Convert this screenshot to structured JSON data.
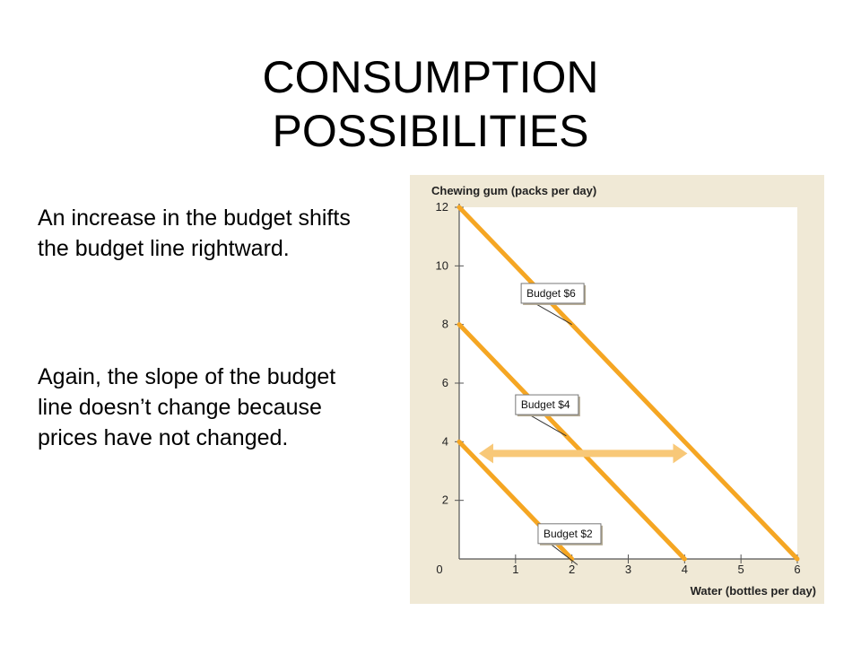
{
  "slide": {
    "title_line1": "CONSUMPTION",
    "title_line2": "POSSIBILITIES",
    "paragraph1": "An increase in the budget shifts the budget line rightward.",
    "paragraph2": "Again, the slope of the budget line doesn’t change because prices have not changed."
  },
  "colors": {
    "budget_line": "#f5a623",
    "shift_arrow": "#f8c878",
    "chart_background": "#f0e9d6",
    "plot_area": "#ffffff",
    "axis": "#555555"
  },
  "chart_data": {
    "type": "line",
    "xlabel": "Water (bottles per day)",
    "ylabel": "Chewing gum (packs per day)",
    "xlim": [
      0,
      6
    ],
    "ylim": [
      0,
      12
    ],
    "x_ticks": [
      "0",
      "1",
      "2",
      "3",
      "4",
      "5",
      "6"
    ],
    "y_ticks": [
      "2",
      "4",
      "6",
      "8",
      "10",
      "12"
    ],
    "grid": false,
    "series": [
      {
        "name": "Budget $2",
        "x": [
          0,
          2
        ],
        "y": [
          4,
          0
        ]
      },
      {
        "name": "Budget $4",
        "x": [
          0,
          4
        ],
        "y": [
          8,
          0
        ]
      },
      {
        "name": "Budget $6",
        "x": [
          0,
          6
        ],
        "y": [
          12,
          0
        ]
      }
    ],
    "callouts": [
      {
        "label": "Budget $6",
        "x": 1.1,
        "y": 9.4
      },
      {
        "label": "Budget $4",
        "x": 1.0,
        "y": 5.6
      },
      {
        "label": "Budget $2",
        "x": 1.4,
        "y": 1.2
      }
    ],
    "shift_arrow": {
      "y": 3.6,
      "x_from": 0.35,
      "x_to": 4.05
    }
  }
}
